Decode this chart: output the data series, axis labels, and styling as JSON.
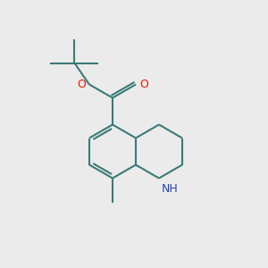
{
  "bg_color": "#ebebeb",
  "bond_color": "#3a7a78",
  "bond_width": 1.5,
  "o_color": "#ee1100",
  "n_color": "#2244bb",
  "figsize": [
    3.0,
    3.0
  ],
  "dpi": 100,
  "xlim": [
    0,
    10
  ],
  "ylim": [
    0,
    10
  ]
}
